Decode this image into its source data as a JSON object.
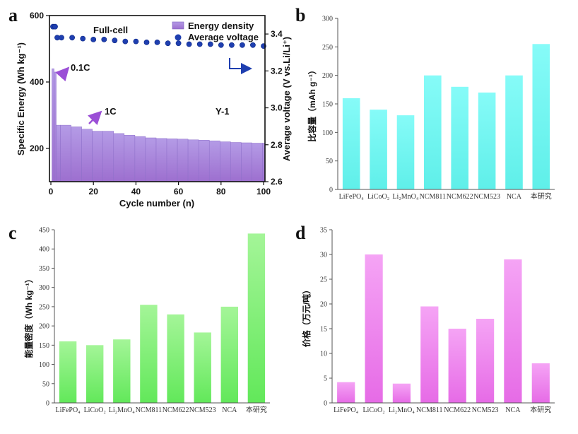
{
  "panels": {
    "a": "a",
    "b": "b",
    "c": "c",
    "d": "d"
  },
  "chart_data": [
    {
      "id": "a",
      "type": "bar",
      "xlabel": "Cycle number (n)",
      "ylabel": "Specific Energy (Wh kg⁻¹)",
      "ylabel_right": "Average voltage (V vs.Li/Li⁺)",
      "xlim": [
        0,
        100
      ],
      "ylim": [
        100,
        600
      ],
      "ylim_right": [
        2.6,
        3.5
      ],
      "xticks": [
        0,
        20,
        40,
        60,
        80,
        100
      ],
      "yticks": [
        200,
        400,
        600
      ],
      "yticks_right": [
        2.6,
        2.8,
        3.0,
        3.2,
        3.4
      ],
      "legend": [
        "Energy density",
        "Average voltage"
      ],
      "legend_position": "top-right",
      "annotations": {
        "full_cell": "Full-cell",
        "rate_01c": "0.1C",
        "rate_1c": "1C",
        "sample": "Y-1"
      },
      "series": [
        {
          "name": "Energy density",
          "kind": "bar",
          "x": [
            1,
            2,
            3,
            5,
            10,
            15,
            20,
            25,
            30,
            35,
            40,
            45,
            50,
            55,
            60,
            65,
            70,
            75,
            80,
            85,
            90,
            95,
            100
          ],
          "values": [
            440,
            430,
            270,
            270,
            265,
            258,
            252,
            252,
            245,
            240,
            236,
            232,
            230,
            229,
            228,
            226,
            225,
            223,
            220,
            218,
            217,
            216,
            216
          ]
        },
        {
          "name": "Average voltage",
          "kind": "scatter",
          "x": [
            1,
            2,
            3,
            5,
            10,
            15,
            20,
            25,
            30,
            35,
            40,
            45,
            50,
            55,
            60,
            65,
            70,
            75,
            80,
            85,
            90,
            95,
            100
          ],
          "values": [
            3.44,
            3.44,
            3.38,
            3.38,
            3.38,
            3.375,
            3.37,
            3.37,
            3.365,
            3.36,
            3.36,
            3.355,
            3.355,
            3.35,
            3.35,
            3.345,
            3.345,
            3.345,
            3.34,
            3.34,
            3.34,
            3.34,
            3.335
          ]
        }
      ]
    },
    {
      "id": "b",
      "type": "bar",
      "ylabel": "比容量（mAh g⁻¹）",
      "categories": [
        "LiFePO₄",
        "LiCoO₂",
        "Li₂MnO₄",
        "NCM811",
        "NCM622",
        "NCM523",
        "NCA",
        "本研究"
      ],
      "values": [
        160,
        140,
        130,
        200,
        180,
        170,
        200,
        255
      ],
      "ylim": [
        0,
        300
      ],
      "yticks": [
        0,
        50,
        100,
        150,
        200,
        250,
        300
      ],
      "color": "#7ff8f4"
    },
    {
      "id": "c",
      "type": "bar",
      "ylabel": "能量密度（Wh kg⁻¹）",
      "categories": [
        "LiFePO₄",
        "LiCoO₂",
        "Li₂MnO₄",
        "NCM811",
        "NCM622",
        "NCM523",
        "NCA",
        "本研究"
      ],
      "values": [
        160,
        150,
        165,
        255,
        230,
        183,
        250,
        440
      ],
      "ylim": [
        0,
        450
      ],
      "yticks": [
        0,
        50,
        100,
        150,
        200,
        250,
        300,
        350,
        400,
        450
      ],
      "color": "#8df27a"
    },
    {
      "id": "d",
      "type": "bar",
      "ylabel": "价格（万元/吨）",
      "categories": [
        "LiFePO₄",
        "LiCoO₂",
        "Li₂MnO₄",
        "NCM811",
        "NCM622",
        "NCM523",
        "NCA",
        "本研究"
      ],
      "values": [
        4.2,
        30,
        3.9,
        19.5,
        15,
        17,
        29,
        8
      ],
      "ylim": [
        0,
        35
      ],
      "yticks": [
        0,
        5,
        10,
        15,
        20,
        25,
        30,
        35
      ],
      "color": "#f28af2"
    }
  ],
  "colors": {
    "energy_bar": "#a68bd9",
    "voltage_dot": "#1f3fb0",
    "arrow": "#9b4fd6",
    "voltage_arrow": "#1f3fb0",
    "axis": "#111111",
    "soft_axis": "#555555"
  }
}
